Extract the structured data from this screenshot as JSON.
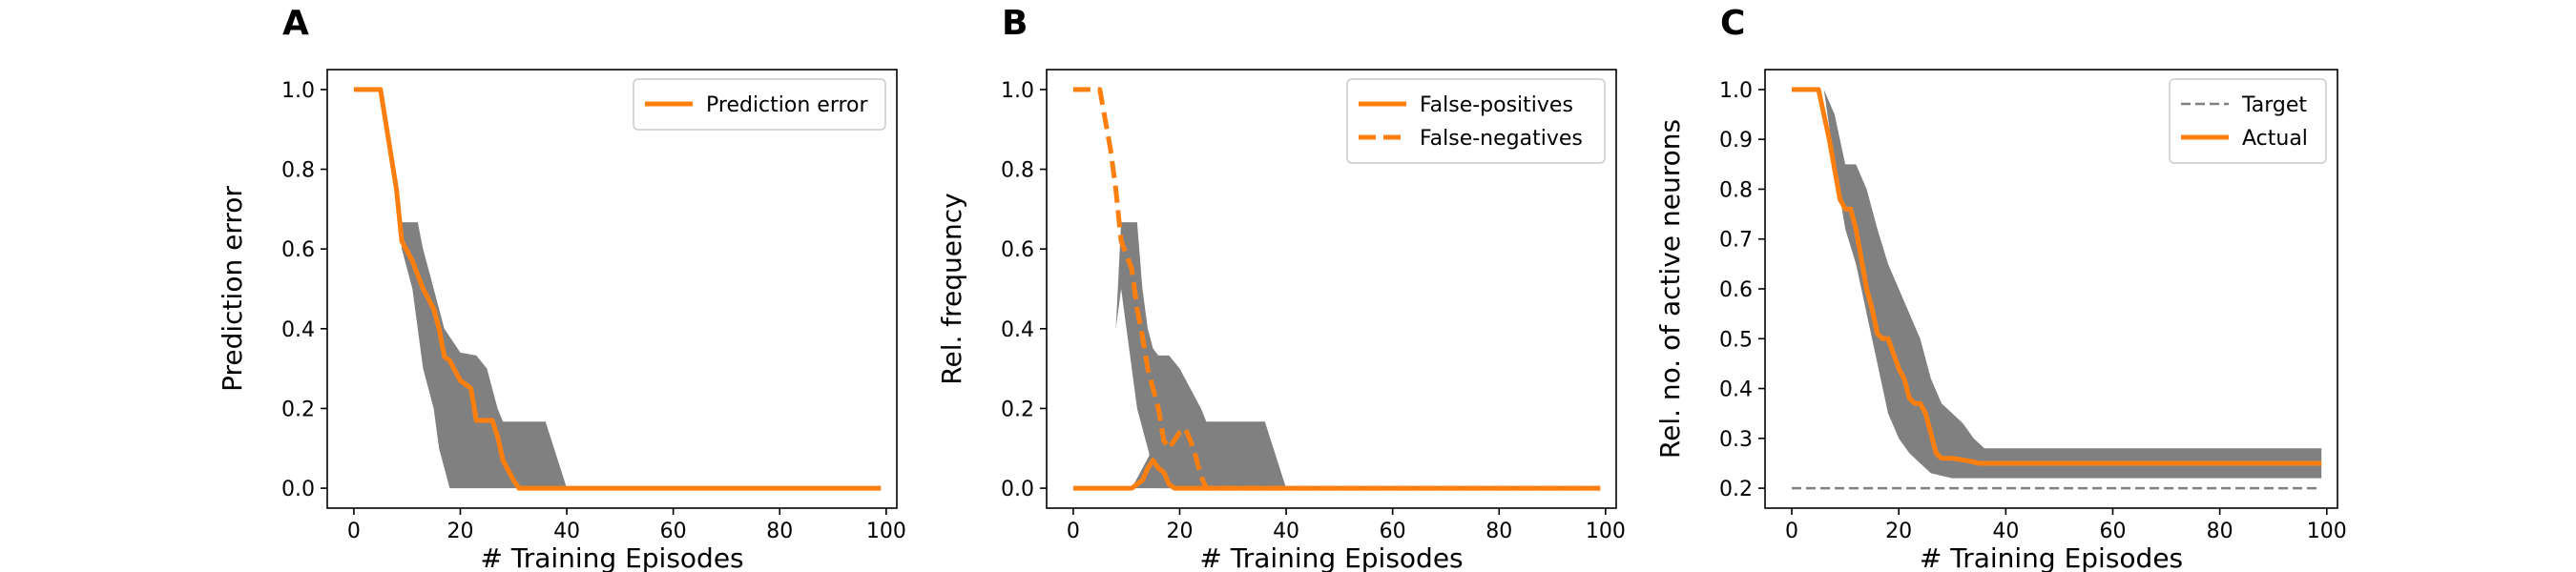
{
  "chart_data": [
    {
      "type": "line",
      "panel_label": "A",
      "xlabel": "# Training Episodes",
      "ylabel": "Prediction error",
      "xlim": [
        -5,
        102
      ],
      "ylim": [
        -0.05,
        1.05
      ],
      "xticks": [
        0,
        20,
        40,
        60,
        80,
        100
      ],
      "xtick_labels": [
        "0",
        "20",
        "40",
        "60",
        "80",
        "100"
      ],
      "yticks": [
        0.0,
        0.2,
        0.4,
        0.6,
        0.8,
        1.0
      ],
      "ytick_labels": [
        "0.0",
        "0.2",
        "0.4",
        "0.6",
        "0.8",
        "1.0"
      ],
      "legend_position": "top-right",
      "band": {
        "color": "#808080",
        "upper": [
          [
            0,
            1
          ],
          [
            9,
            1
          ],
          [
            9,
            0.667
          ],
          [
            12,
            0.667
          ],
          [
            13,
            0.6
          ],
          [
            15,
            0.5
          ],
          [
            17,
            0.4
          ],
          [
            19,
            0.36
          ],
          [
            20,
            0.34
          ],
          [
            23,
            0.333
          ],
          [
            25,
            0.3
          ],
          [
            27,
            0.2
          ],
          [
            28,
            0.167
          ],
          [
            36,
            0.167
          ],
          [
            40,
            0
          ],
          [
            99,
            0
          ]
        ],
        "lower": [
          [
            0,
            1
          ],
          [
            9,
            1
          ],
          [
            9,
            0.6
          ],
          [
            11,
            0.5
          ],
          [
            12,
            0.4
          ],
          [
            13,
            0.3
          ],
          [
            14,
            0.25
          ],
          [
            15,
            0.2
          ],
          [
            16,
            0.1
          ],
          [
            18,
            0
          ],
          [
            99,
            0
          ]
        ]
      },
      "series": [
        {
          "name": "Prediction error",
          "color": "#ff7f0e",
          "style": "solid",
          "points": [
            [
              0,
              1
            ],
            [
              5,
              1
            ],
            [
              8,
              0.75
            ],
            [
              9,
              0.62
            ],
            [
              11,
              0.57
            ],
            [
              13,
              0.5
            ],
            [
              15,
              0.45
            ],
            [
              16,
              0.4
            ],
            [
              17,
              0.33
            ],
            [
              18,
              0.32
            ],
            [
              20,
              0.27
            ],
            [
              22,
              0.25
            ],
            [
              23,
              0.17
            ],
            [
              26,
              0.17
            ],
            [
              27,
              0.13
            ],
            [
              28,
              0.07
            ],
            [
              30,
              0.02
            ],
            [
              31,
              0
            ],
            [
              99,
              0
            ]
          ]
        }
      ]
    },
    {
      "type": "line",
      "panel_label": "B",
      "xlabel": "# Training Episodes",
      "ylabel": "Rel. frequency",
      "xlim": [
        -5,
        102
      ],
      "ylim": [
        -0.05,
        1.05
      ],
      "xticks": [
        0,
        20,
        40,
        60,
        80,
        100
      ],
      "xtick_labels": [
        "0",
        "20",
        "40",
        "60",
        "80",
        "100"
      ],
      "yticks": [
        0.0,
        0.2,
        0.4,
        0.6,
        0.8,
        1.0
      ],
      "ytick_labels": [
        "0.0",
        "0.2",
        "0.4",
        "0.6",
        "0.8",
        "1.0"
      ],
      "legend_position": "top-right",
      "band": {
        "color": "#808080",
        "upper": [
          [
            0,
            0
          ],
          [
            8,
            0.4
          ],
          [
            9,
            0.667
          ],
          [
            12,
            0.667
          ],
          [
            13,
            0.5
          ],
          [
            14,
            0.4
          ],
          [
            15,
            0.35
          ],
          [
            16,
            0.333
          ],
          [
            18,
            0.333
          ],
          [
            20,
            0.3
          ],
          [
            22,
            0.25
          ],
          [
            24,
            0.2
          ],
          [
            25,
            0.167
          ],
          [
            36,
            0.167
          ],
          [
            40,
            0
          ],
          [
            99,
            0
          ]
        ],
        "lower": [
          [
            0,
            0
          ],
          [
            8,
            0.4
          ],
          [
            9,
            0.5
          ],
          [
            10,
            0.4
          ],
          [
            11,
            0.3
          ],
          [
            12,
            0.2
          ],
          [
            13,
            0.15
          ],
          [
            14,
            0.1
          ],
          [
            15,
            0.05
          ],
          [
            16,
            0
          ],
          [
            99,
            0
          ]
        ]
      },
      "band2": {
        "color": "#808080",
        "upper": [
          [
            11,
            0
          ],
          [
            13,
            0.05
          ],
          [
            15,
            0.1
          ],
          [
            17,
            0.2
          ],
          [
            19,
            0.2
          ],
          [
            20,
            0.15
          ],
          [
            25,
            0
          ]
        ],
        "lower": [
          [
            11,
            0
          ],
          [
            25,
            0
          ]
        ]
      },
      "series": [
        {
          "name": "False-positives",
          "color": "#ff7f0e",
          "style": "solid",
          "points": [
            [
              0,
              0
            ],
            [
              11,
              0
            ],
            [
              13,
              0.02
            ],
            [
              14,
              0.05
            ],
            [
              15,
              0.07
            ],
            [
              16,
              0.05
            ],
            [
              17,
              0.04
            ],
            [
              18,
              0.01
            ],
            [
              19,
              0
            ],
            [
              99,
              0
            ]
          ]
        },
        {
          "name": "False-negatives",
          "color": "#ff7f0e",
          "style": "dashed",
          "points": [
            [
              0,
              1
            ],
            [
              5,
              1
            ],
            [
              7,
              0.85
            ],
            [
              8,
              0.75
            ],
            [
              9,
              0.62
            ],
            [
              11,
              0.55
            ],
            [
              12,
              0.45
            ],
            [
              13,
              0.38
            ],
            [
              14,
              0.3
            ],
            [
              15,
              0.25
            ],
            [
              16,
              0.2
            ],
            [
              17,
              0.12
            ],
            [
              18,
              0.1
            ],
            [
              19,
              0.12
            ],
            [
              20,
              0.14
            ],
            [
              21,
              0.15
            ],
            [
              22,
              0.12
            ],
            [
              23,
              0.08
            ],
            [
              24,
              0.03
            ],
            [
              25,
              0
            ],
            [
              99,
              0
            ]
          ]
        }
      ]
    },
    {
      "type": "line",
      "panel_label": "C",
      "xlabel": "# Training Episodes",
      "ylabel": "Rel. no. of active neurons",
      "xlim": [
        -5,
        102
      ],
      "ylim": [
        0.16,
        1.04
      ],
      "xticks": [
        0,
        20,
        40,
        60,
        80,
        100
      ],
      "xtick_labels": [
        "0",
        "20",
        "40",
        "60",
        "80",
        "100"
      ],
      "yticks": [
        0.2,
        0.3,
        0.4,
        0.5,
        0.6,
        0.7,
        0.8,
        0.9,
        1.0
      ],
      "ytick_labels": [
        "0.2",
        "0.3",
        "0.4",
        "0.5",
        "0.6",
        "0.7",
        "0.8",
        "0.9",
        "1.0"
      ],
      "legend_position": "top-right",
      "band": {
        "color": "#808080",
        "upper": [
          [
            0,
            1
          ],
          [
            6,
            1
          ],
          [
            8,
            0.95
          ],
          [
            10,
            0.85
          ],
          [
            12,
            0.85
          ],
          [
            14,
            0.8
          ],
          [
            16,
            0.72
          ],
          [
            18,
            0.65
          ],
          [
            20,
            0.6
          ],
          [
            22,
            0.55
          ],
          [
            24,
            0.5
          ],
          [
            26,
            0.42
          ],
          [
            28,
            0.37
          ],
          [
            30,
            0.35
          ],
          [
            32,
            0.33
          ],
          [
            34,
            0.3
          ],
          [
            36,
            0.28
          ],
          [
            99,
            0.28
          ]
        ],
        "lower": [
          [
            0,
            1
          ],
          [
            6,
            1
          ],
          [
            8,
            0.85
          ],
          [
            10,
            0.72
          ],
          [
            12,
            0.65
          ],
          [
            14,
            0.55
          ],
          [
            16,
            0.45
          ],
          [
            18,
            0.35
          ],
          [
            20,
            0.3
          ],
          [
            22,
            0.27
          ],
          [
            24,
            0.25
          ],
          [
            26,
            0.23
          ],
          [
            30,
            0.22
          ],
          [
            36,
            0.22
          ],
          [
            99,
            0.22
          ]
        ]
      },
      "series": [
        {
          "name": "Target",
          "color": "#808080",
          "style": "dashed",
          "points": [
            [
              0,
              0.2
            ],
            [
              99,
              0.2
            ]
          ]
        },
        {
          "name": "Actual",
          "color": "#ff7f0e",
          "style": "solid",
          "points": [
            [
              0,
              1
            ],
            [
              5,
              1
            ],
            [
              7,
              0.9
            ],
            [
              9,
              0.78
            ],
            [
              10,
              0.76
            ],
            [
              11,
              0.76
            ],
            [
              12,
              0.72
            ],
            [
              13,
              0.66
            ],
            [
              14,
              0.6
            ],
            [
              15,
              0.56
            ],
            [
              16,
              0.51
            ],
            [
              17,
              0.5
            ],
            [
              18,
              0.5
            ],
            [
              19,
              0.47
            ],
            [
              20,
              0.44
            ],
            [
              21,
              0.42
            ],
            [
              22,
              0.38
            ],
            [
              23,
              0.37
            ],
            [
              24,
              0.37
            ],
            [
              25,
              0.35
            ],
            [
              26,
              0.31
            ],
            [
              27,
              0.27
            ],
            [
              28,
              0.26
            ],
            [
              30,
              0.26
            ],
            [
              33,
              0.255
            ],
            [
              35,
              0.25
            ],
            [
              99,
              0.25
            ]
          ]
        }
      ]
    }
  ]
}
